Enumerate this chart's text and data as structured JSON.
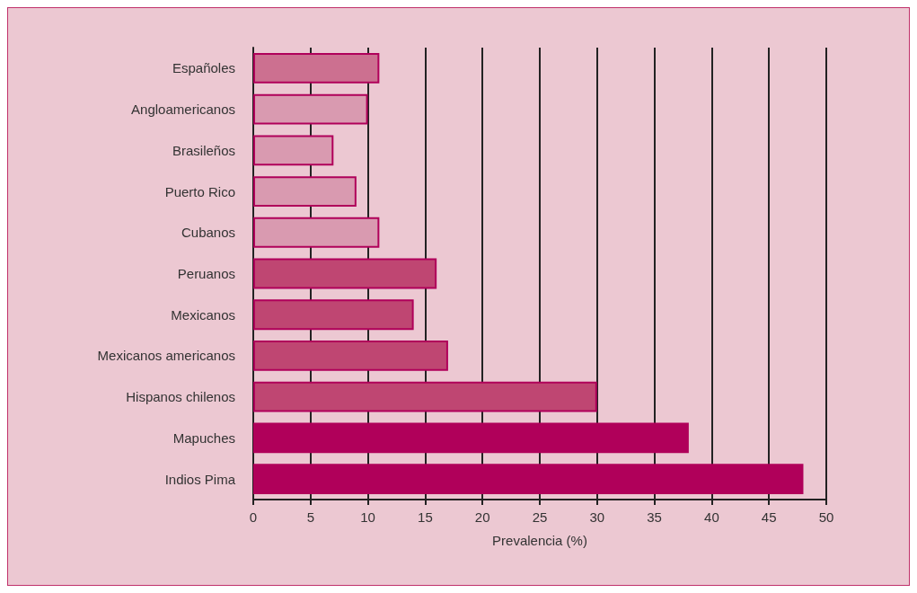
{
  "chart_data": {
    "type": "bar",
    "orientation": "horizontal",
    "xlabel": "Prevalencia (%)",
    "categories": [
      "Españoles",
      "Angloamericanos",
      "Brasileños",
      "Puerto Rico",
      "Cubanos",
      "Peruanos",
      "Mexicanos",
      "Mexicanos americanos",
      "Hispanos chilenos",
      "Mapuches",
      "Indios Pima"
    ],
    "values": [
      11,
      10,
      7,
      9,
      11,
      16,
      14,
      17,
      30,
      38,
      48
    ],
    "colors": [
      "#cc7090",
      "#d99ab0",
      "#d99ab0",
      "#d99ab0",
      "#d99ab0",
      "#bf4672",
      "#bf4672",
      "#bf4672",
      "#bf4672",
      "#b0005a",
      "#b0005a"
    ],
    "xlim": [
      0,
      50
    ],
    "xticks": [
      0,
      5,
      10,
      15,
      20,
      25,
      30,
      35,
      40,
      45,
      50
    ],
    "grid": "x"
  }
}
